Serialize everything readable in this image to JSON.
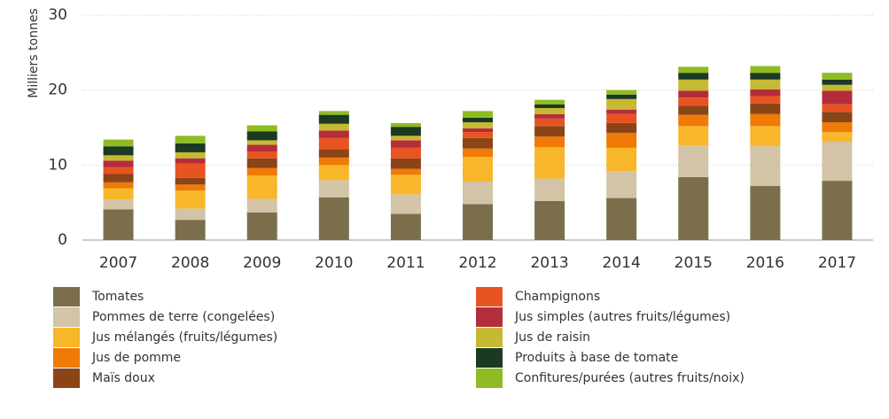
{
  "chart_data": {
    "type": "stacked_bar",
    "y_label": "Milliers tonnes",
    "categories": [
      "2007",
      "2008",
      "2009",
      "2010",
      "2011",
      "2012",
      "2013",
      "2014",
      "2015",
      "2016",
      "2017"
    ],
    "series": [
      {
        "name": "Tomates",
        "color": "#7b6f4b",
        "values": [
          4.1,
          2.7,
          3.7,
          5.7,
          3.5,
          4.8,
          5.2,
          5.6,
          8.4,
          7.2,
          7.9
        ]
      },
      {
        "name": "Pommes de terre (congelées)",
        "color": "#d3c4a8",
        "values": [
          1.3,
          1.5,
          1.8,
          2.3,
          2.6,
          3.0,
          3.0,
          3.6,
          4.2,
          5.3,
          5.2
        ]
      },
      {
        "name": "Jus mélangés (fruits/légumes)",
        "color": "#f8b62a",
        "values": [
          1.5,
          2.4,
          3.1,
          2.0,
          2.6,
          3.3,
          4.2,
          3.1,
          2.6,
          2.7,
          1.3
        ]
      },
      {
        "name": "Jus de pomme",
        "color": "#ef7a06",
        "values": [
          0.8,
          0.8,
          1.0,
          1.0,
          0.8,
          1.1,
          1.4,
          2.0,
          1.5,
          1.6,
          1.3
        ]
      },
      {
        "name": "Maïs doux",
        "color": "#8b4416",
        "values": [
          1.1,
          0.9,
          1.3,
          1.1,
          1.4,
          1.4,
          1.4,
          1.3,
          1.2,
          1.4,
          1.4
        ]
      },
      {
        "name": "Champignons",
        "color": "#e85421",
        "values": [
          0.9,
          1.9,
          0.9,
          1.5,
          1.4,
          0.8,
          1.0,
          1.2,
          1.1,
          1.0,
          1.0
        ]
      },
      {
        "name": "Jus simples (autres fruits/légumes)",
        "color": "#b52d3a",
        "values": [
          0.9,
          0.7,
          0.9,
          1.0,
          1.0,
          0.5,
          0.6,
          0.6,
          0.9,
          0.9,
          1.8
        ]
      },
      {
        "name": "Jus de raisin",
        "color": "#c6b933",
        "values": [
          0.7,
          0.8,
          0.6,
          0.9,
          0.6,
          0.8,
          0.8,
          1.4,
          1.5,
          1.3,
          0.8
        ]
      },
      {
        "name": "Produits à base de tomate",
        "color": "#1c3a22",
        "values": [
          1.2,
          1.2,
          1.2,
          1.2,
          1.2,
          0.6,
          0.5,
          0.6,
          0.9,
          0.9,
          0.7
        ]
      },
      {
        "name": "Confitures/purées (autres fruits/noix)",
        "color": "#8fbc22",
        "values": [
          0.9,
          1.0,
          0.8,
          0.5,
          0.5,
          0.9,
          0.6,
          0.6,
          0.8,
          0.9,
          0.9
        ]
      }
    ],
    "ylim": [
      0,
      30
    ],
    "yticks": [
      0,
      10,
      20,
      30
    ],
    "grid": true
  }
}
